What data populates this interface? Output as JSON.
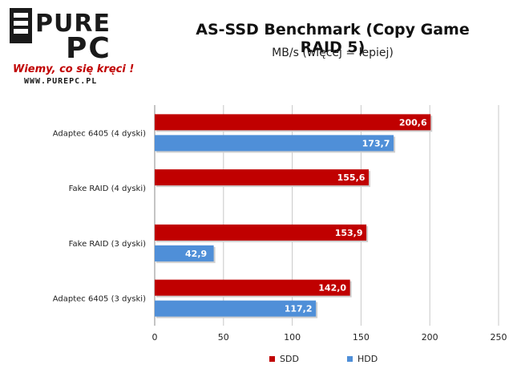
{
  "logo": {
    "top_text": "PURE",
    "bottom_text": "PC",
    "slogan": "Wiemy, co się kręci !",
    "url": "WWW.PUREPC.PL"
  },
  "colors": {
    "sdd": "#c00000",
    "hdd": "#4f8fd8",
    "grid": "#c8c8c8",
    "axis": "#888888"
  },
  "chart_data": {
    "type": "bar",
    "orientation": "horizontal",
    "title": "AS-SSD Benchmark (Copy Game RAID 5)",
    "subtitle": "MB/s (więcej = lepiej)",
    "categories": [
      "Adaptec 6405 (4 dyski)",
      "Fake RAID (4 dyski)",
      "Fake RAID (3 dyski)",
      "Adaptec 6405 (3 dyski)"
    ],
    "series": [
      {
        "name": "SDD",
        "values": [
          200.6,
          155.6,
          153.9,
          142.0
        ],
        "labels": [
          "200,6",
          "155,6",
          "153,9",
          "142,0"
        ]
      },
      {
        "name": "HDD",
        "values": [
          173.7,
          null,
          42.9,
          117.2
        ],
        "labels": [
          "173,7",
          "",
          "42,9",
          "117,2"
        ]
      }
    ],
    "xlim": [
      0,
      250
    ],
    "xticks": [
      "0",
      "50",
      "100",
      "150",
      "200",
      "250"
    ],
    "grid": true,
    "legend": "bottom"
  }
}
